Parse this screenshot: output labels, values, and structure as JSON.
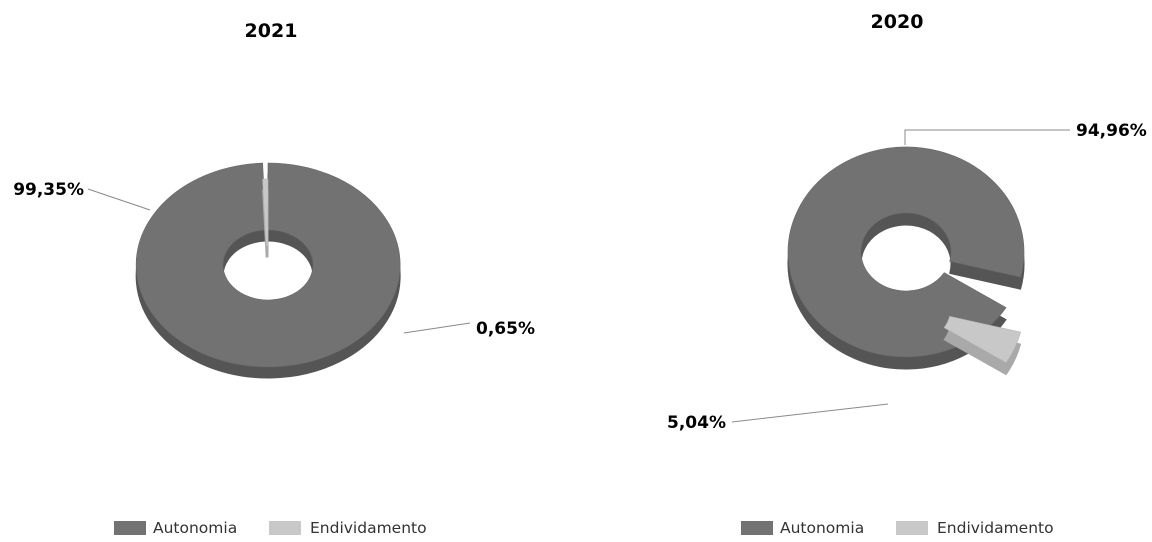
{
  "chart_data": [
    {
      "type": "pie",
      "title": "2021",
      "labels": [
        "Autonomia",
        "Endividamento"
      ],
      "values": [
        99.35,
        0.65
      ],
      "value_labels": [
        "99,35%",
        "0,65%"
      ],
      "legend": [
        "Autonomia",
        "Endividamento"
      ],
      "legend_position": "bottom",
      "colors": [
        "#727272",
        "#c8c8c8"
      ]
    },
    {
      "type": "pie",
      "title": "2020",
      "labels": [
        "Autonomia",
        "Endividamento"
      ],
      "values": [
        94.96,
        5.04
      ],
      "value_labels": [
        "94,96%",
        "5,04%"
      ],
      "legend": [
        "Autonomia",
        "Endividamento"
      ],
      "legend_position": "bottom",
      "colors": [
        "#727272",
        "#c8c8c8"
      ]
    }
  ]
}
